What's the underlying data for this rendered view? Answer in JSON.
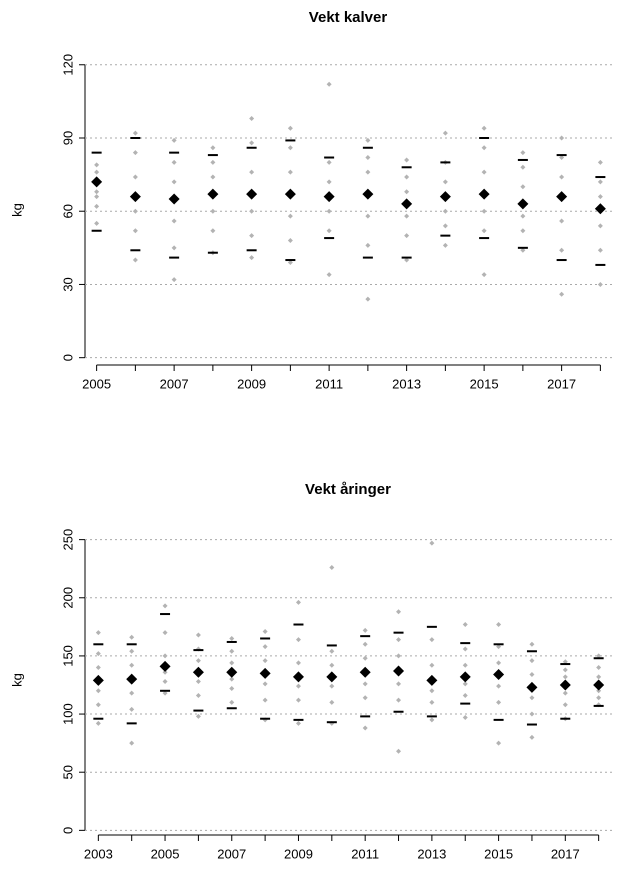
{
  "chart_data": [
    {
      "type": "dot",
      "title": "Vekt kalver",
      "y_label": "kg",
      "x": [
        2005,
        2006,
        2007,
        2008,
        2009,
        2010,
        2011,
        2012,
        2013,
        2014,
        2015,
        2016,
        2017,
        2018
      ],
      "values": [
        72,
        66,
        65,
        67,
        67,
        67,
        66,
        67,
        63,
        66,
        67,
        63,
        66,
        61
      ],
      "upper": [
        84,
        90,
        84,
        83,
        86,
        89,
        82,
        86,
        78,
        80,
        90,
        81,
        83,
        74
      ],
      "lower": [
        52,
        44,
        41,
        43,
        44,
        40,
        49,
        41,
        41,
        50,
        49,
        45,
        40,
        38
      ],
      "points": [
        [
          55,
          62,
          68,
          72,
          76,
          79,
          66
        ],
        [
          40,
          52,
          60,
          66,
          74,
          84,
          92
        ],
        [
          32,
          45,
          56,
          65,
          72,
          80,
          89
        ],
        [
          43,
          52,
          60,
          67,
          74,
          80,
          86
        ],
        [
          41,
          50,
          60,
          67,
          76,
          88,
          98
        ],
        [
          39,
          48,
          58,
          67,
          76,
          86,
          94
        ],
        [
          34,
          52,
          60,
          66,
          72,
          80,
          112
        ],
        [
          24,
          46,
          58,
          67,
          76,
          82,
          89
        ],
        [
          40,
          50,
          58,
          63,
          68,
          74,
          81
        ],
        [
          46,
          54,
          60,
          66,
          72,
          80,
          92
        ],
        [
          34,
          52,
          60,
          67,
          76,
          86,
          94
        ],
        [
          44,
          52,
          58,
          63,
          70,
          78,
          84
        ],
        [
          26,
          44,
          56,
          66,
          74,
          82,
          90
        ],
        [
          30,
          44,
          54,
          61,
          66,
          72,
          80
        ]
      ],
      "point_color": "#b3b3b3",
      "color": "#000000",
      "xlim": [
        2004.7,
        2018.3
      ],
      "xticks": [
        2005,
        2007,
        2009,
        2011,
        2013,
        2015,
        2017
      ],
      "ylim": [
        -3,
        124
      ],
      "yticks": [
        0,
        30,
        60,
        90,
        120
      ],
      "grid": true
    },
    {
      "type": "dot",
      "title": "Vekt åringer",
      "y_label": "kg",
      "x": [
        2003,
        2004,
        2005,
        2006,
        2007,
        2008,
        2009,
        2010,
        2011,
        2012,
        2013,
        2014,
        2015,
        2016,
        2017,
        2018
      ],
      "values": [
        129,
        130,
        141,
        136,
        136,
        135,
        132,
        132,
        136,
        137,
        129,
        132,
        134,
        123,
        125,
        125
      ],
      "upper": [
        160,
        160,
        186,
        155,
        162,
        165,
        177,
        159,
        167,
        170,
        175,
        161,
        160,
        154,
        143,
        148
      ],
      "lower": [
        96,
        92,
        120,
        103,
        105,
        96,
        95,
        93,
        98,
        102,
        98,
        109,
        95,
        91,
        96,
        107
      ],
      "points": [
        [
          92,
          108,
          120,
          129,
          140,
          152,
          170
        ],
        [
          75,
          104,
          118,
          130,
          142,
          154,
          166
        ],
        [
          118,
          128,
          136,
          141,
          150,
          170,
          193
        ],
        [
          98,
          116,
          128,
          136,
          146,
          156,
          168
        ],
        [
          110,
          122,
          130,
          136,
          144,
          154,
          165
        ],
        [
          95,
          112,
          126,
          135,
          146,
          158,
          171
        ],
        [
          92,
          112,
          124,
          132,
          144,
          164,
          196
        ],
        [
          92,
          110,
          124,
          132,
          142,
          154,
          226
        ],
        [
          88,
          114,
          126,
          136,
          148,
          160,
          172
        ],
        [
          68,
          112,
          126,
          137,
          150,
          164,
          188
        ],
        [
          95,
          110,
          120,
          129,
          142,
          164,
          247
        ],
        [
          97,
          116,
          126,
          132,
          142,
          156,
          177
        ],
        [
          75,
          110,
          124,
          134,
          144,
          158,
          177
        ],
        [
          80,
          100,
          114,
          123,
          134,
          146,
          160
        ],
        [
          96,
          108,
          118,
          125,
          132,
          138,
          145
        ],
        [
          108,
          114,
          120,
          125,
          132,
          140,
          150
        ]
      ],
      "point_color": "#b3b3b3",
      "color": "#000000",
      "xlim": [
        2002.6,
        2018.4
      ],
      "xticks": [
        2003,
        2005,
        2007,
        2009,
        2011,
        2013,
        2015,
        2017
      ],
      "ylim": [
        -4,
        260
      ],
      "yticks": [
        0,
        50,
        100,
        150,
        200,
        250
      ],
      "grid": true
    }
  ]
}
